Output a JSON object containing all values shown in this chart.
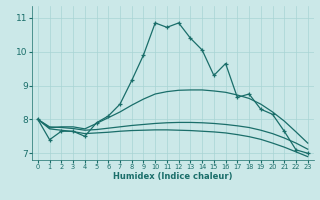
{
  "xlabel": "Humidex (Indice chaleur)",
  "bg_color": "#cbe8e8",
  "line_color": "#1a6e6a",
  "grid_color": "#a8d4d4",
  "xlim": [
    -0.5,
    23.5
  ],
  "ylim": [
    6.8,
    11.35
  ],
  "xticks": [
    0,
    1,
    2,
    3,
    4,
    5,
    6,
    7,
    8,
    9,
    10,
    11,
    12,
    13,
    14,
    15,
    16,
    17,
    18,
    19,
    20,
    21,
    22,
    23
  ],
  "yticks": [
    7,
    8,
    9,
    10,
    11
  ],
  "series": [
    {
      "x": [
        0,
        1,
        2,
        3,
        4,
        5,
        6,
        7,
        8,
        9,
        10,
        11,
        12,
        13,
        14,
        15,
        16,
        17,
        18,
        19,
        20,
        21,
        22,
        23
      ],
      "y": [
        8.0,
        7.4,
        7.65,
        7.65,
        7.5,
        7.9,
        8.1,
        8.45,
        9.15,
        9.9,
        10.85,
        10.72,
        10.85,
        10.4,
        10.05,
        9.3,
        9.65,
        8.65,
        8.75,
        8.3,
        8.15,
        7.65,
        7.1,
        7.0
      ],
      "marker": true
    },
    {
      "x": [
        0,
        1,
        2,
        3,
        4,
        5,
        6,
        7,
        8,
        9,
        10,
        11,
        12,
        13,
        14,
        15,
        16,
        17,
        18,
        19,
        20,
        21,
        22,
        23
      ],
      "y": [
        8.0,
        7.75,
        7.78,
        7.78,
        7.72,
        7.88,
        8.05,
        8.22,
        8.42,
        8.6,
        8.75,
        8.82,
        8.86,
        8.87,
        8.87,
        8.84,
        8.8,
        8.72,
        8.62,
        8.45,
        8.22,
        7.95,
        7.63,
        7.3
      ],
      "marker": false
    },
    {
      "x": [
        0,
        1,
        2,
        3,
        4,
        5,
        6,
        7,
        8,
        9,
        10,
        11,
        12,
        13,
        14,
        15,
        16,
        17,
        18,
        19,
        20,
        21,
        22,
        23
      ],
      "y": [
        8.0,
        7.78,
        7.76,
        7.73,
        7.68,
        7.7,
        7.74,
        7.78,
        7.82,
        7.85,
        7.88,
        7.9,
        7.91,
        7.91,
        7.9,
        7.88,
        7.85,
        7.81,
        7.76,
        7.68,
        7.58,
        7.45,
        7.3,
        7.12
      ],
      "marker": false
    },
    {
      "x": [
        0,
        1,
        2,
        3,
        4,
        5,
        6,
        7,
        8,
        9,
        10,
        11,
        12,
        13,
        14,
        15,
        16,
        17,
        18,
        19,
        20,
        21,
        22,
        23
      ],
      "y": [
        8.0,
        7.72,
        7.68,
        7.64,
        7.58,
        7.6,
        7.62,
        7.65,
        7.67,
        7.68,
        7.69,
        7.69,
        7.68,
        7.67,
        7.65,
        7.63,
        7.6,
        7.55,
        7.49,
        7.41,
        7.3,
        7.18,
        7.04,
        6.9
      ],
      "marker": false
    }
  ]
}
